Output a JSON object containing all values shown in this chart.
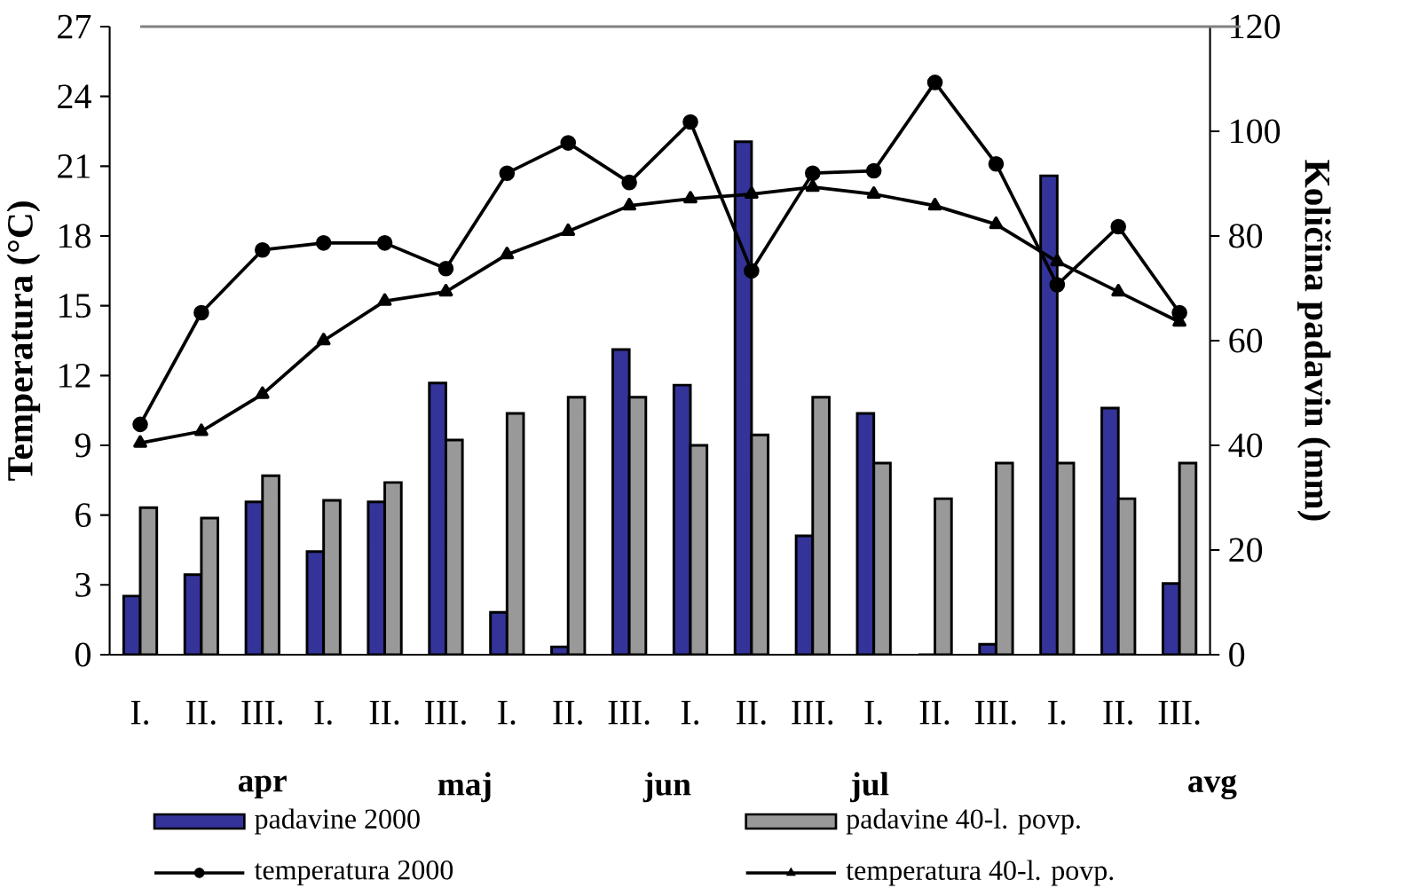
{
  "chart_data": {
    "type": "bar",
    "categories": [
      "I.",
      "II.",
      "III.",
      "I.",
      "II.",
      "III.",
      "I.",
      "II.",
      "III.",
      "I.",
      "II.",
      "III.",
      "I.",
      "II.",
      "III.",
      "I.",
      "II.",
      "III."
    ],
    "ylabel": "Temperatura (°C)",
    "y2label": "Količina padavin (mm)",
    "ylim": [
      0,
      27
    ],
    "yticks": [
      0,
      3,
      6,
      9,
      12,
      15,
      18,
      21,
      24,
      27
    ],
    "y2lim": [
      0,
      120
    ],
    "y2ticks": [
      0,
      20,
      40,
      60,
      80,
      100,
      120
    ],
    "annotations": [
      "apr",
      "maj",
      "jun",
      "jul",
      "avg"
    ],
    "legend": "bottom",
    "series": [
      {
        "name": "padavine 2000",
        "axis": "y2",
        "color": "#333399",
        "values": [
          11.2,
          15.3,
          29.2,
          19.7,
          29.2,
          51.9,
          8.1,
          1.5,
          58.3,
          51.5,
          98,
          22.7,
          46.1,
          0,
          2,
          91.5,
          47.1,
          13.6
        ]
      },
      {
        "name": "padavine 40-l. povp.",
        "axis": "y2",
        "color": "#999999",
        "values": [
          28.1,
          26.1,
          34.2,
          29.5,
          32.9,
          41,
          46.1,
          49.2,
          49.2,
          40,
          42,
          49.2,
          36.6,
          29.8,
          36.6,
          36.6,
          29.8,
          36.6
        ]
      },
      {
        "name": "temperatura 2000",
        "type": "line",
        "axis": "y",
        "color": "#000000",
        "marker": "circle",
        "values": [
          9.9,
          14.7,
          17.4,
          17.7,
          17.7,
          16.6,
          20.7,
          22.0,
          20.3,
          22.9,
          16.5,
          20.7,
          20.8,
          24.6,
          21.1,
          15.9,
          18.4,
          14.7
        ]
      },
      {
        "name": "temperatura 40-l. povp.",
        "type": "line",
        "axis": "y",
        "color": "#000000",
        "marker": "triangle",
        "values": [
          9.1,
          9.6,
          11.2,
          13.5,
          15.2,
          15.6,
          17.2,
          18.2,
          19.3,
          19.6,
          19.8,
          20.1,
          19.8,
          19.3,
          18.5,
          16.9,
          15.6,
          14.3
        ]
      }
    ]
  }
}
